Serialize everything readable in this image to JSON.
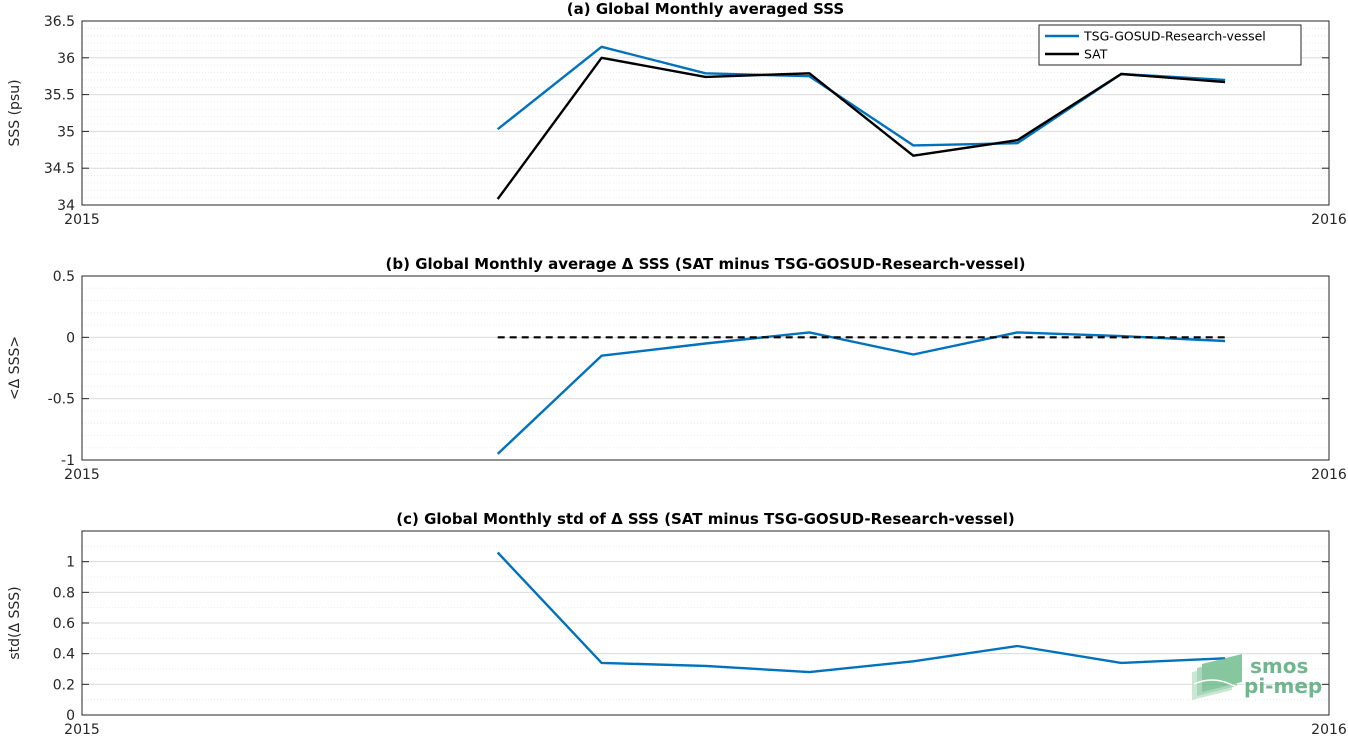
{
  "chart_data": [
    {
      "type": "line",
      "title": "(a) Global Monthly averaged SSS",
      "xlabel": "",
      "ylabel": "SSS (psu)",
      "x": [
        4,
        5,
        6,
        7,
        8,
        9,
        10,
        11
      ],
      "xlim": [
        2015,
        2016
      ],
      "xticks": [
        "2015",
        "2016"
      ],
      "ylim": [
        34,
        36.5
      ],
      "yticks": [
        "34",
        "34.5",
        "35",
        "35.5",
        "36",
        "36.5"
      ],
      "grid": "on",
      "legend": {
        "position": "top-right",
        "entries": [
          "TSG-GOSUD-Research-vessel",
          "SAT"
        ]
      },
      "series": [
        {
          "name": "TSG-GOSUD-Research-vessel",
          "color": "#0072bd",
          "dashed": false,
          "values": [
            35.03,
            36.15,
            35.79,
            35.75,
            34.81,
            34.84,
            35.78,
            35.7
          ]
        },
        {
          "name": "SAT",
          "color": "#000000",
          "dashed": false,
          "values": [
            34.08,
            36.0,
            35.74,
            35.79,
            34.67,
            34.88,
            35.78,
            35.67
          ]
        }
      ]
    },
    {
      "type": "line",
      "title": "(b) Global Monthly average Δ SSS (SAT minus TSG-GOSUD-Research-vessel)",
      "xlabel": "",
      "ylabel": "<Δ SSS>",
      "x": [
        4,
        5,
        6,
        7,
        8,
        9,
        10,
        11
      ],
      "xlim": [
        2015,
        2016
      ],
      "xticks": [
        "2015",
        "2016"
      ],
      "ylim": [
        -1,
        0.5
      ],
      "yticks": [
        "-1",
        "-0.5",
        "0",
        "0.5"
      ],
      "grid": "on",
      "series": [
        {
          "color": "#0072bd",
          "dashed": false,
          "values": [
            -0.95,
            -0.15,
            -0.05,
            0.04,
            -0.14,
            0.04,
            0.01,
            -0.03
          ]
        },
        {
          "color": "#000000",
          "dashed": true,
          "values": [
            0,
            0,
            0,
            0,
            0,
            0,
            0,
            0
          ]
        }
      ]
    },
    {
      "type": "line",
      "title": "(c) Global Monthly std of Δ SSS (SAT minus TSG-GOSUD-Research-vessel)",
      "xlabel": "",
      "ylabel": "std(Δ SSS)",
      "x": [
        4,
        5,
        6,
        7,
        8,
        9,
        10,
        11
      ],
      "xlim": [
        2015,
        2016
      ],
      "xticks": [
        "2015",
        "2016"
      ],
      "ylim": [
        0,
        1.2
      ],
      "yticks": [
        "0",
        "0.2",
        "0.4",
        "0.6",
        "0.8",
        "1"
      ],
      "grid": "on",
      "series": [
        {
          "color": "#0072bd",
          "dashed": false,
          "values": [
            1.06,
            0.34,
            0.32,
            0.28,
            0.35,
            0.45,
            0.34,
            0.37
          ]
        }
      ]
    }
  ],
  "logo": {
    "line1": "smos",
    "line2": "pi-mep",
    "color": "#3fa06a"
  }
}
